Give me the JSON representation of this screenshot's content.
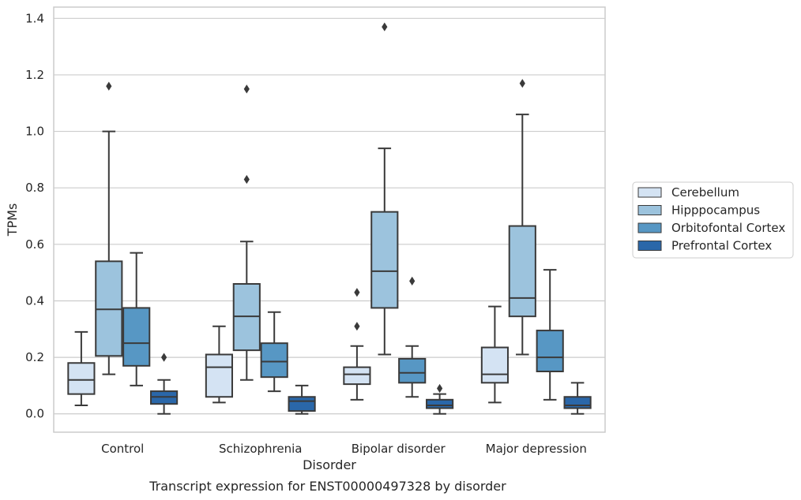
{
  "chart_data": {
    "type": "box",
    "xlabel": "Disorder",
    "ylabel": "TPMs",
    "caption": "Transcript expression for ENST00000497328 by disorder",
    "categories": [
      "Control",
      "Schizophrenia",
      "Bipolar disorder",
      "Major depression"
    ],
    "ylim": [
      -0.065,
      1.44
    ],
    "yticks": [
      0.0,
      0.2,
      0.4,
      0.6,
      0.8,
      1.0,
      1.2,
      1.4
    ],
    "ytick_labels": [
      "0.0",
      "0.2",
      "0.4",
      "0.6",
      "0.8",
      "1.0",
      "1.2",
      "1.4"
    ],
    "grid": "horizontal",
    "legend_position": "right",
    "series": [
      {
        "name": "Cerebellum",
        "color": "#d4e3f3",
        "boxes": [
          {
            "whislo": 0.03,
            "q1": 0.07,
            "med": 0.12,
            "q3": 0.18,
            "whishi": 0.29,
            "fliers": []
          },
          {
            "whislo": 0.04,
            "q1": 0.06,
            "med": 0.165,
            "q3": 0.21,
            "whishi": 0.31,
            "fliers": []
          },
          {
            "whislo": 0.05,
            "q1": 0.105,
            "med": 0.14,
            "q3": 0.165,
            "whishi": 0.24,
            "fliers": [
              0.31,
              0.43
            ]
          },
          {
            "whislo": 0.04,
            "q1": 0.11,
            "med": 0.14,
            "q3": 0.235,
            "whishi": 0.38,
            "fliers": []
          }
        ]
      },
      {
        "name": "Hipppocampus",
        "color": "#9cc3dd",
        "boxes": [
          {
            "whislo": 0.14,
            "q1": 0.205,
            "med": 0.37,
            "q3": 0.54,
            "whishi": 1.0,
            "fliers": [
              1.16
            ]
          },
          {
            "whislo": 0.12,
            "q1": 0.225,
            "med": 0.345,
            "q3": 0.46,
            "whishi": 0.61,
            "fliers": [
              0.83,
              1.15
            ]
          },
          {
            "whislo": 0.21,
            "q1": 0.375,
            "med": 0.505,
            "q3": 0.715,
            "whishi": 0.94,
            "fliers": [
              1.37
            ]
          },
          {
            "whislo": 0.21,
            "q1": 0.345,
            "med": 0.41,
            "q3": 0.665,
            "whishi": 1.06,
            "fliers": [
              1.17
            ]
          }
        ]
      },
      {
        "name": "Orbitofontal Cortex",
        "color": "#5797c4",
        "boxes": [
          {
            "whislo": 0.1,
            "q1": 0.17,
            "med": 0.25,
            "q3": 0.375,
            "whishi": 0.57,
            "fliers": []
          },
          {
            "whislo": 0.08,
            "q1": 0.13,
            "med": 0.185,
            "q3": 0.25,
            "whishi": 0.36,
            "fliers": []
          },
          {
            "whislo": 0.06,
            "q1": 0.11,
            "med": 0.145,
            "q3": 0.195,
            "whishi": 0.24,
            "fliers": [
              0.47
            ]
          },
          {
            "whislo": 0.05,
            "q1": 0.15,
            "med": 0.2,
            "q3": 0.295,
            "whishi": 0.51,
            "fliers": []
          }
        ]
      },
      {
        "name": "Prefrontal Cortex",
        "color": "#2a67a9",
        "boxes": [
          {
            "whislo": 0.0,
            "q1": 0.035,
            "med": 0.06,
            "q3": 0.08,
            "whishi": 0.12,
            "fliers": [
              0.2
            ]
          },
          {
            "whislo": 0.0,
            "q1": 0.01,
            "med": 0.045,
            "q3": 0.06,
            "whishi": 0.1,
            "fliers": []
          },
          {
            "whislo": 0.0,
            "q1": 0.02,
            "med": 0.03,
            "q3": 0.05,
            "whishi": 0.07,
            "fliers": [
              0.09
            ]
          },
          {
            "whislo": 0.0,
            "q1": 0.02,
            "med": 0.03,
            "q3": 0.06,
            "whishi": 0.11,
            "fliers": []
          }
        ]
      }
    ]
  }
}
